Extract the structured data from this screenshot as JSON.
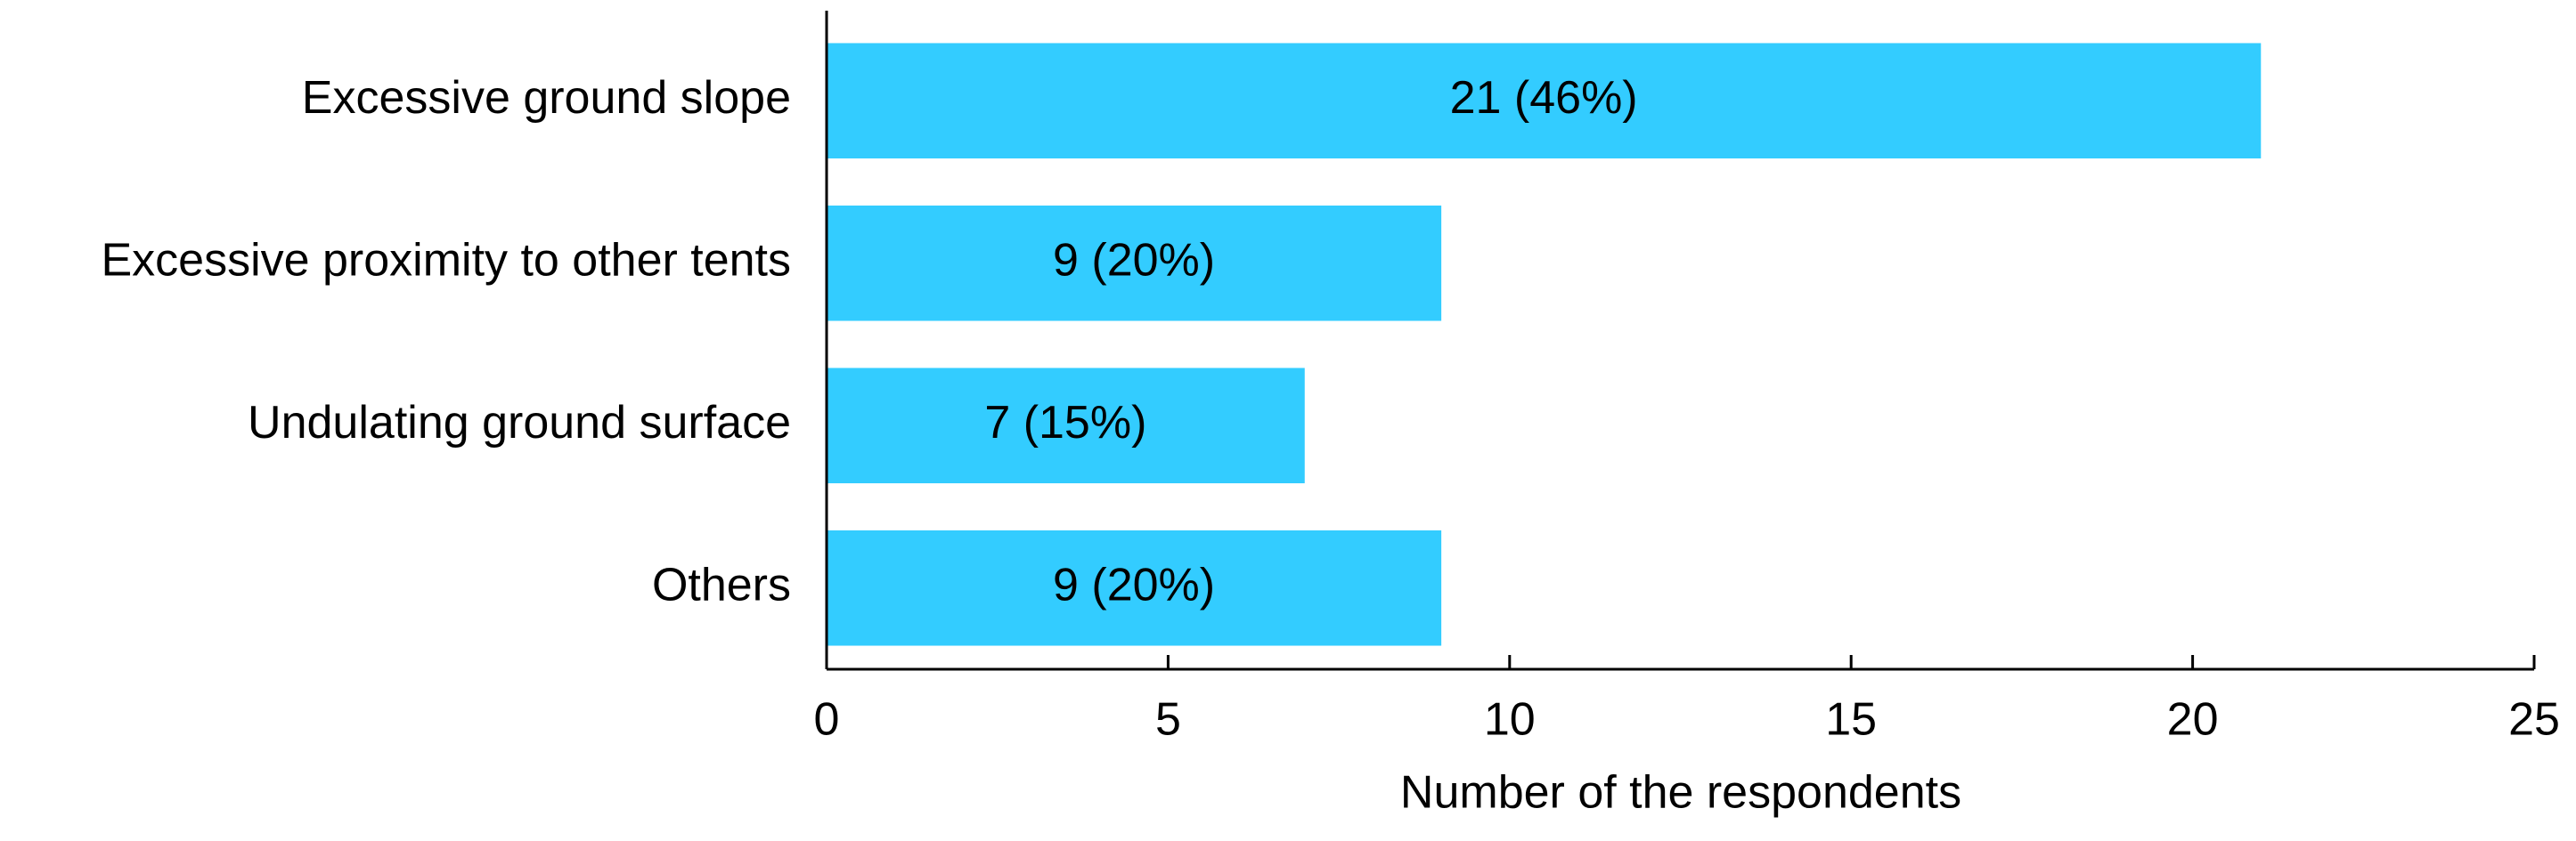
{
  "chart_data": {
    "type": "bar",
    "orientation": "horizontal",
    "categories": [
      "Excessive ground slope",
      "Excessive proximity to other tents",
      "Undulating ground surface",
      "Others"
    ],
    "values": [
      21,
      9,
      7,
      9
    ],
    "value_labels": [
      "21 (46%)",
      "9 (20%)",
      "7 (15%)",
      "9 (20%)"
    ],
    "color": "#33ccff",
    "xlabel": "Number of the respondents",
    "xlim": [
      0,
      25
    ],
    "xticks": [
      0,
      5,
      10,
      15,
      20,
      25
    ],
    "grid": false
  }
}
